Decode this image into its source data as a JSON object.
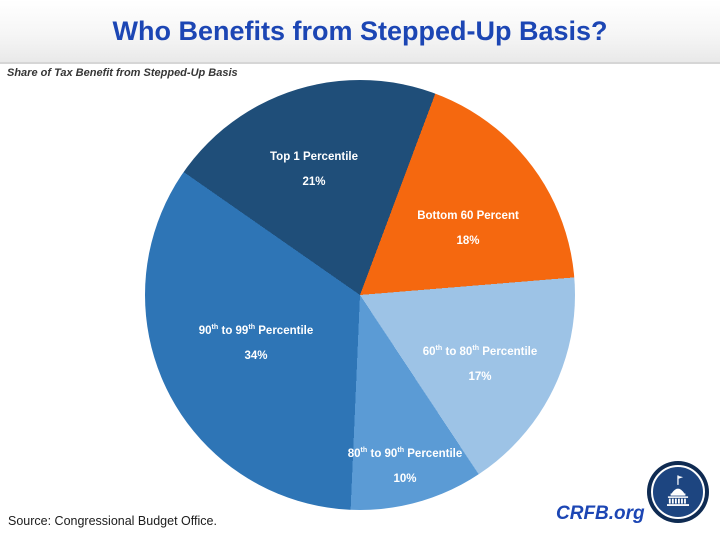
{
  "header": {
    "title": "Who Benefits from Stepped-Up Basis?"
  },
  "subtitle": "Share of Tax Benefit from Stepped-Up Basis",
  "footer": {
    "source": "Source: Congressional Budget Office.",
    "brand": "CRFB.org"
  },
  "branding": {
    "brand_blue": "#1C46B4",
    "logo_icon": "capitol-dome-icon"
  },
  "chart_data": {
    "type": "pie",
    "title": "Who Benefits from Stepped-Up Basis?",
    "subtitle": "Share of Tax Benefit from Stepped-Up Basis",
    "source": "Source: Congressional Budget Office.",
    "start_angle_deg": 20.5,
    "direction": "clockwise",
    "labels_position": "inside",
    "legend": "none",
    "slices": [
      {
        "label": "Bottom 60 Percent",
        "pct": "18%",
        "value": 18,
        "color": "#F5680F"
      },
      {
        "label": "60th to 80th Percentile",
        "pct": "17%",
        "value": 17,
        "color": "#9DC3E6"
      },
      {
        "label": "80th to 90th Percentile",
        "pct": "10%",
        "value": 10,
        "color": "#5B9BD5"
      },
      {
        "label": "90th to 99th Percentile",
        "pct": "34%",
        "value": 34,
        "color": "#2E75B6"
      },
      {
        "label": "Top 1 Percentile",
        "pct": "21%",
        "value": 21,
        "color": "#1F4E79"
      }
    ]
  }
}
